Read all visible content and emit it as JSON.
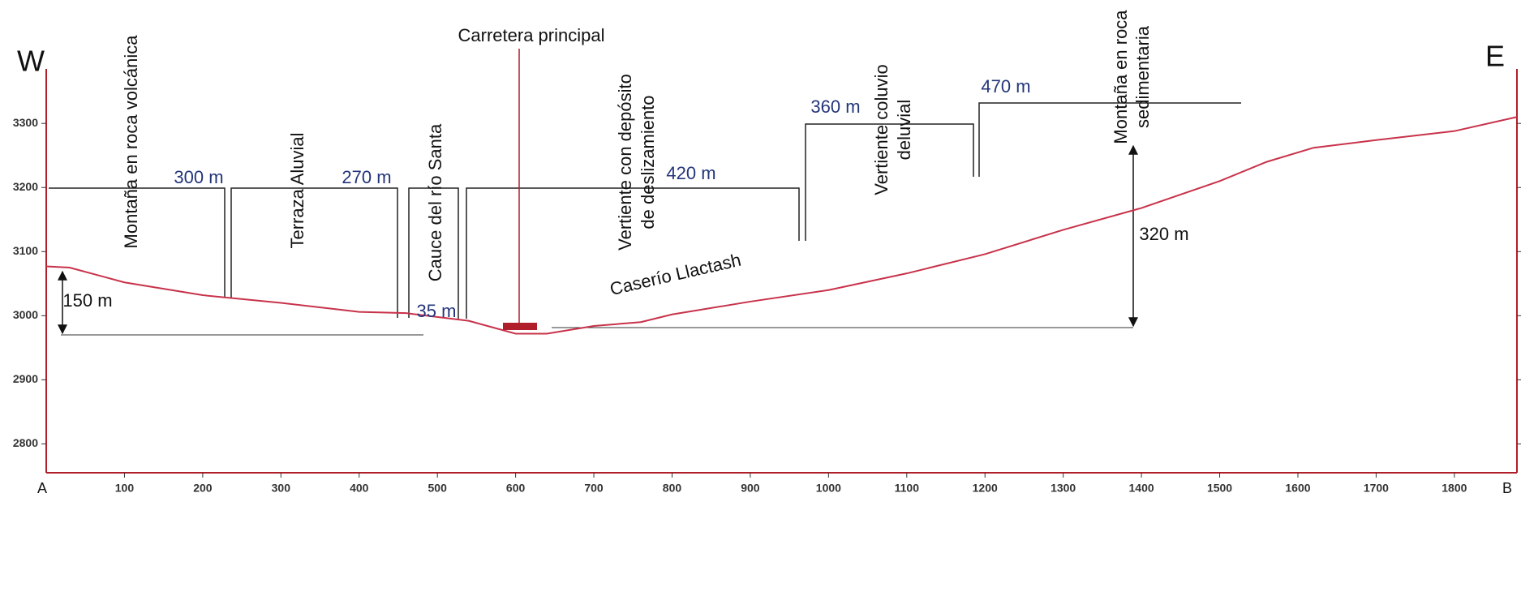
{
  "chart_data": {
    "type": "line",
    "color": "#c8324a",
    "axis_color": "#b01e2a",
    "x": [
      0,
      30,
      100,
      200,
      300,
      400,
      460,
      540,
      600,
      640,
      700,
      760,
      800,
      900,
      1000,
      1100,
      1200,
      1300,
      1400,
      1500,
      1560,
      1620,
      1700,
      1800,
      1880
    ],
    "values": [
      3077,
      3075,
      3052,
      3032,
      3020,
      3006,
      3004,
      2992,
      2972,
      2972,
      2984,
      2990,
      3002,
      3022,
      3040,
      3066,
      3096,
      3134,
      3168,
      3210,
      3240,
      3262,
      3274,
      3288,
      3310
    ],
    "xlim": [
      0,
      1880
    ],
    "ylim": [
      2755,
      3385
    ],
    "xticks": [
      100,
      200,
      300,
      400,
      500,
      600,
      700,
      800,
      900,
      1000,
      1100,
      1200,
      1300,
      1400,
      1500,
      1600,
      1700,
      1800
    ],
    "yticks": [
      2800,
      2900,
      3000,
      3100,
      3200,
      3300
    ],
    "corners": [
      "W",
      "E",
      "A",
      "B"
    ],
    "road": "Carretera principal",
    "units": [
      [
        "Montaña en roca volcánica"
      ],
      [
        "Terraza Aluvial"
      ],
      [
        "Cauce del río Santa"
      ],
      [
        "Vertiente con depósito",
        "de deslizamiento"
      ],
      [
        "Vertiente coluvio",
        "deluvial"
      ],
      [
        "Montaña en roca",
        "sedimentaria"
      ]
    ],
    "widths": [
      "300 m",
      "270 m",
      "35 m",
      "420 m",
      "360 m",
      "470 m"
    ],
    "heights": [
      "150 m",
      "320 m"
    ],
    "village": "Caserío Llactash"
  }
}
